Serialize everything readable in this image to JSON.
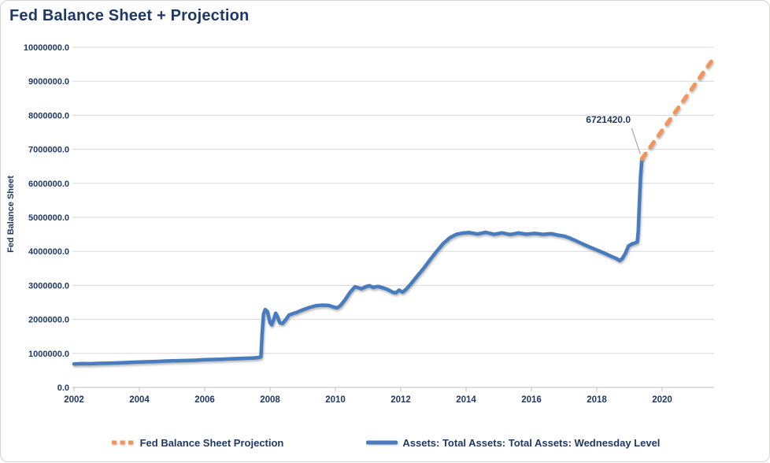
{
  "title": "Fed Balance Sheet + Projection",
  "chart_data": {
    "type": "line",
    "title": "Fed Balance Sheet + Projection",
    "xlabel": "",
    "ylabel": "Fed Balance Sheet",
    "xlim": [
      2002,
      2021.6
    ],
    "ylim": [
      0,
      10000000
    ],
    "grid": "horizontal",
    "legend_position": "bottom",
    "x_ticks": [
      "2002",
      "2004",
      "2006",
      "2008",
      "2010",
      "2012",
      "2014",
      "2016",
      "2018",
      "2020"
    ],
    "y_ticks": [
      "0.0",
      "1000000.0",
      "2000000.0",
      "3000000.0",
      "4000000.0",
      "5000000.0",
      "6000000.0",
      "7000000.0",
      "8000000.0",
      "9000000.0",
      "10000000.0"
    ],
    "colors": {
      "projection_orange": "#F2955A",
      "assets_blue": "#4A7CBE",
      "text_navy": "#1F3864",
      "gridline_gray": "#D9D9D9",
      "axis_gray": "#BFBFBF",
      "leader_gray": "#A6A6A6"
    },
    "annotation": {
      "text": "6721420.0",
      "x": 2019.38,
      "y": 6721420
    },
    "series": [
      {
        "name": "Fed Balance Sheet Projection",
        "style": "dashed",
        "color": "#F2955A",
        "points": [
          [
            2019.38,
            6721420
          ],
          [
            2021.5,
            9580000
          ]
        ]
      },
      {
        "name": "Assets: Total Assets: Total Assets: Wednesday Level",
        "style": "solid",
        "color": "#4A7CBE",
        "points": [
          [
            2002.0,
            690000
          ],
          [
            2002.25,
            700000
          ],
          [
            2002.5,
            697000
          ],
          [
            2002.75,
            706000
          ],
          [
            2003.0,
            712000
          ],
          [
            2003.25,
            718000
          ],
          [
            2003.5,
            726000
          ],
          [
            2003.75,
            738000
          ],
          [
            2004.0,
            748000
          ],
          [
            2004.25,
            755000
          ],
          [
            2004.5,
            762000
          ],
          [
            2004.75,
            772000
          ],
          [
            2005.0,
            780000
          ],
          [
            2005.25,
            786000
          ],
          [
            2005.5,
            793000
          ],
          [
            2005.75,
            802000
          ],
          [
            2006.0,
            814000
          ],
          [
            2006.25,
            822000
          ],
          [
            2006.5,
            829000
          ],
          [
            2006.75,
            838000
          ],
          [
            2007.0,
            848000
          ],
          [
            2007.25,
            856000
          ],
          [
            2007.5,
            866000
          ],
          [
            2007.65,
            880000
          ],
          [
            2007.72,
            900000
          ],
          [
            2007.76,
            1600000
          ],
          [
            2007.8,
            2150000
          ],
          [
            2007.85,
            2290000
          ],
          [
            2007.92,
            2230000
          ],
          [
            2008.0,
            1900000
          ],
          [
            2008.05,
            1840000
          ],
          [
            2008.12,
            2020000
          ],
          [
            2008.17,
            2180000
          ],
          [
            2008.22,
            2100000
          ],
          [
            2008.3,
            1900000
          ],
          [
            2008.38,
            1880000
          ],
          [
            2008.48,
            1990000
          ],
          [
            2008.58,
            2130000
          ],
          [
            2008.7,
            2170000
          ],
          [
            2008.85,
            2220000
          ],
          [
            2009.0,
            2280000
          ],
          [
            2009.2,
            2350000
          ],
          [
            2009.4,
            2400000
          ],
          [
            2009.6,
            2420000
          ],
          [
            2009.8,
            2410000
          ],
          [
            2009.95,
            2360000
          ],
          [
            2010.05,
            2340000
          ],
          [
            2010.15,
            2400000
          ],
          [
            2010.3,
            2580000
          ],
          [
            2010.45,
            2800000
          ],
          [
            2010.6,
            2960000
          ],
          [
            2010.7,
            2930000
          ],
          [
            2010.8,
            2900000
          ],
          [
            2010.95,
            2970000
          ],
          [
            2011.05,
            2990000
          ],
          [
            2011.15,
            2940000
          ],
          [
            2011.3,
            2970000
          ],
          [
            2011.45,
            2930000
          ],
          [
            2011.6,
            2880000
          ],
          [
            2011.75,
            2800000
          ],
          [
            2011.85,
            2780000
          ],
          [
            2011.95,
            2860000
          ],
          [
            2012.05,
            2800000
          ],
          [
            2012.15,
            2870000
          ],
          [
            2012.3,
            3030000
          ],
          [
            2012.5,
            3270000
          ],
          [
            2012.7,
            3500000
          ],
          [
            2012.9,
            3760000
          ],
          [
            2013.1,
            4000000
          ],
          [
            2013.3,
            4230000
          ],
          [
            2013.5,
            4400000
          ],
          [
            2013.7,
            4500000
          ],
          [
            2013.9,
            4540000
          ],
          [
            2014.1,
            4550000
          ],
          [
            2014.35,
            4510000
          ],
          [
            2014.6,
            4560000
          ],
          [
            2014.85,
            4500000
          ],
          [
            2015.1,
            4545000
          ],
          [
            2015.35,
            4495000
          ],
          [
            2015.6,
            4540000
          ],
          [
            2015.85,
            4505000
          ],
          [
            2016.1,
            4530000
          ],
          [
            2016.35,
            4500000
          ],
          [
            2016.6,
            4520000
          ],
          [
            2016.8,
            4480000
          ],
          [
            2017.0,
            4450000
          ],
          [
            2017.2,
            4380000
          ],
          [
            2017.45,
            4270000
          ],
          [
            2017.7,
            4160000
          ],
          [
            2017.95,
            4060000
          ],
          [
            2018.2,
            3960000
          ],
          [
            2018.45,
            3850000
          ],
          [
            2018.6,
            3790000
          ],
          [
            2018.7,
            3730000
          ],
          [
            2018.78,
            3790000
          ],
          [
            2018.88,
            3950000
          ],
          [
            2018.97,
            4160000
          ],
          [
            2019.08,
            4220000
          ],
          [
            2019.18,
            4250000
          ],
          [
            2019.24,
            4280000
          ],
          [
            2019.27,
            4600000
          ],
          [
            2019.3,
            5300000
          ],
          [
            2019.34,
            6200000
          ],
          [
            2019.38,
            6721420
          ]
        ]
      }
    ]
  }
}
